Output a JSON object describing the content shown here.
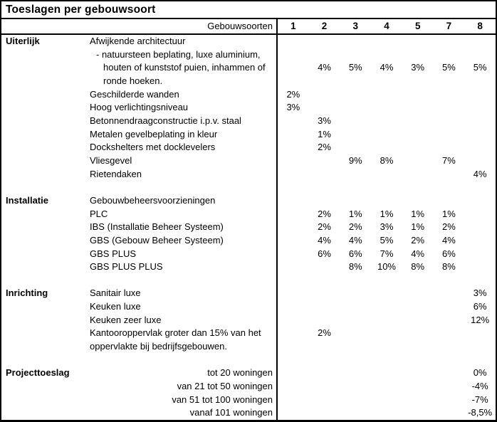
{
  "title": "Toeslagen per gebouwsoort",
  "header": {
    "label": "Gebouwsoorten",
    "columns": [
      "1",
      "2",
      "3",
      "4",
      "5",
      "7",
      "8"
    ]
  },
  "colors": {
    "background": "#ffffff",
    "text": "#000000",
    "border": "#000000"
  },
  "rows": [
    {
      "section": "Uiterlijk",
      "label": "Afwijkende architectuur",
      "indent": 0,
      "align": "left",
      "values": [
        "",
        "",
        "",
        "",
        "",
        "",
        ""
      ]
    },
    {
      "section": "",
      "label": "- natuursteen beplating, luxe aluminium,",
      "indent": 1,
      "align": "left",
      "values": [
        "",
        "",
        "",
        "",
        "",
        "",
        ""
      ]
    },
    {
      "section": "",
      "label": "houten of kunststof puien, inhammen of",
      "indent": 2,
      "align": "left",
      "values": [
        "",
        "4%",
        "5%",
        "4%",
        "3%",
        "5%",
        "5%"
      ]
    },
    {
      "section": "",
      "label": "ronde hoeken.",
      "indent": 2,
      "align": "left",
      "values": [
        "",
        "",
        "",
        "",
        "",
        "",
        ""
      ]
    },
    {
      "section": "",
      "label": "Geschilderde wanden",
      "indent": 0,
      "align": "left",
      "values": [
        "2%",
        "",
        "",
        "",
        "",
        "",
        ""
      ]
    },
    {
      "section": "",
      "label": "Hoog verlichtingsniveau",
      "indent": 0,
      "align": "left",
      "values": [
        "3%",
        "",
        "",
        "",
        "",
        "",
        ""
      ]
    },
    {
      "section": "",
      "label": "Betonnendraagconstructie i.p.v. staal",
      "indent": 0,
      "align": "left",
      "values": [
        "",
        "3%",
        "",
        "",
        "",
        "",
        ""
      ]
    },
    {
      "section": "",
      "label": "Metalen gevelbeplating in kleur",
      "indent": 0,
      "align": "left",
      "values": [
        "",
        "1%",
        "",
        "",
        "",
        "",
        ""
      ]
    },
    {
      "section": "",
      "label": "Dockshelters met docklevelers",
      "indent": 0,
      "align": "left",
      "values": [
        "",
        "2%",
        "",
        "",
        "",
        "",
        ""
      ]
    },
    {
      "section": "",
      "label": "Vliesgevel",
      "indent": 0,
      "align": "left",
      "values": [
        "",
        "",
        "9%",
        "8%",
        "",
        "7%",
        ""
      ]
    },
    {
      "section": "",
      "label": "Rietendaken",
      "indent": 0,
      "align": "left",
      "values": [
        "",
        "",
        "",
        "",
        "",
        "",
        "4%"
      ]
    },
    {
      "section": "",
      "label": "",
      "indent": 0,
      "align": "left",
      "values": [
        "",
        "",
        "",
        "",
        "",
        "",
        ""
      ]
    },
    {
      "section": "Installatie",
      "label": "Gebouwbeheersvoorzieningen",
      "indent": 0,
      "align": "left",
      "values": [
        "",
        "",
        "",
        "",
        "",
        "",
        ""
      ]
    },
    {
      "section": "",
      "label": "PLC",
      "indent": 0,
      "align": "left",
      "values": [
        "",
        "2%",
        "1%",
        "1%",
        "1%",
        "1%",
        ""
      ]
    },
    {
      "section": "",
      "label": "IBS (Installatie Beheer Systeem)",
      "indent": 0,
      "align": "left",
      "values": [
        "",
        "2%",
        "2%",
        "3%",
        "1%",
        "2%",
        ""
      ]
    },
    {
      "section": "",
      "label": "GBS (Gebouw Beheer Systeem)",
      "indent": 0,
      "align": "left",
      "values": [
        "",
        "4%",
        "4%",
        "5%",
        "2%",
        "4%",
        ""
      ]
    },
    {
      "section": "",
      "label": "GBS PLUS",
      "indent": 0,
      "align": "left",
      "values": [
        "",
        "6%",
        "6%",
        "7%",
        "4%",
        "6%",
        ""
      ]
    },
    {
      "section": "",
      "label": "GBS PLUS PLUS",
      "indent": 0,
      "align": "left",
      "values": [
        "",
        "",
        "8%",
        "10%",
        "8%",
        "8%",
        ""
      ]
    },
    {
      "section": "",
      "label": "",
      "indent": 0,
      "align": "left",
      "values": [
        "",
        "",
        "",
        "",
        "",
        "",
        ""
      ]
    },
    {
      "section": "Inrichting",
      "label": "Sanitair luxe",
      "indent": 0,
      "align": "left",
      "values": [
        "",
        "",
        "",
        "",
        "",
        "",
        "3%"
      ]
    },
    {
      "section": "",
      "label": "Keuken luxe",
      "indent": 0,
      "align": "left",
      "values": [
        "",
        "",
        "",
        "",
        "",
        "",
        "6%"
      ]
    },
    {
      "section": "",
      "label": "Keuken zeer luxe",
      "indent": 0,
      "align": "left",
      "values": [
        "",
        "",
        "",
        "",
        "",
        "",
        "12%"
      ]
    },
    {
      "section": "",
      "label": "Kantooroppervlak groter dan 15% van het",
      "indent": 0,
      "align": "left",
      "values": [
        "",
        "2%",
        "",
        "",
        "",
        "",
        ""
      ]
    },
    {
      "section": "",
      "label": "oppervlakte bij bedrijfsgebouwen.",
      "indent": 0,
      "align": "left",
      "values": [
        "",
        "",
        "",
        "",
        "",
        "",
        ""
      ]
    },
    {
      "section": "",
      "label": "",
      "indent": 0,
      "align": "left",
      "values": [
        "",
        "",
        "",
        "",
        "",
        "",
        ""
      ]
    },
    {
      "section": "Projecttoeslag",
      "label": "tot 20 woningen",
      "indent": 0,
      "align": "right",
      "values": [
        "",
        "",
        "",
        "",
        "",
        "",
        "0%"
      ]
    },
    {
      "section": "",
      "label": "van 21 tot 50 woningen",
      "indent": 0,
      "align": "right",
      "values": [
        "",
        "",
        "",
        "",
        "",
        "",
        "-4%"
      ]
    },
    {
      "section": "",
      "label": "van 51 tot 100 woningen",
      "indent": 0,
      "align": "right",
      "values": [
        "",
        "",
        "",
        "",
        "",
        "",
        "-7%"
      ]
    },
    {
      "section": "",
      "label": "vanaf 101 woningen",
      "indent": 0,
      "align": "right",
      "values": [
        "",
        "",
        "",
        "",
        "",
        "",
        "-8,5%"
      ]
    }
  ]
}
